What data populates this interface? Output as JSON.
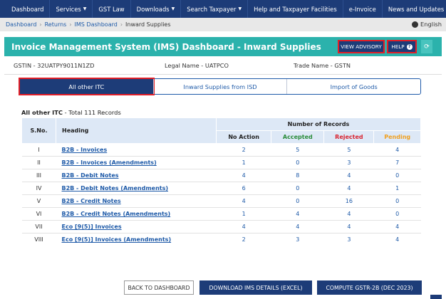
{
  "nav": {
    "items": [
      {
        "label": "Dashboard",
        "caret": false
      },
      {
        "label": "Services",
        "caret": true
      },
      {
        "label": "GST Law",
        "caret": false
      },
      {
        "label": "Downloads",
        "caret": true
      },
      {
        "label": "Search Taxpayer",
        "caret": true
      },
      {
        "label": "Help and Taxpayer Facilities",
        "caret": false
      },
      {
        "label": "e-Invoice",
        "caret": false
      },
      {
        "label": "News and Updates",
        "caret": false
      }
    ]
  },
  "breadcrumb": {
    "items": [
      "Dashboard",
      "Returns",
      "IMS Dashboard",
      "Inward Supplies"
    ],
    "language": "English"
  },
  "header": {
    "title": "Invoice Management System (IMS) Dashboard - Inward Supplies",
    "advisory_label": "VIEW ADVISORY",
    "help_label": "HELP"
  },
  "info": {
    "gstin": "GSTIN - 32UATPY9011N1ZD",
    "legal_name": "Legal Name - UATPCO",
    "trade_name": "Trade Name - GSTN"
  },
  "tabs": [
    {
      "label": "All other ITC",
      "active": true
    },
    {
      "label": "Inward Supplies from ISD",
      "active": false
    },
    {
      "label": "Import of Goods",
      "active": false
    }
  ],
  "records": {
    "section": "All other ITC",
    "total_text": " - Total 111 Records"
  },
  "table": {
    "col_sno": "S.No.",
    "col_heading": "Heading",
    "col_group": "Number of Records",
    "col_no_action": "No Action",
    "col_accepted": "Accepted",
    "col_rejected": "Rejected",
    "col_pending": "Pending",
    "rows": [
      {
        "sno": "I",
        "heading": "B2B - Invoices",
        "no_action": "2",
        "accepted": "5",
        "rejected": "5",
        "pending": "4"
      },
      {
        "sno": "II",
        "heading": "B2B - Invoices (Amendments)",
        "no_action": "1",
        "accepted": "0",
        "rejected": "3",
        "pending": "7"
      },
      {
        "sno": "III",
        "heading": "B2B - Debit Notes",
        "no_action": "4",
        "accepted": "8",
        "rejected": "4",
        "pending": "0"
      },
      {
        "sno": "IV",
        "heading": "B2B - Debit Notes (Amendments)",
        "no_action": "6",
        "accepted": "0",
        "rejected": "4",
        "pending": "1"
      },
      {
        "sno": "V",
        "heading": "B2B - Credit Notes",
        "no_action": "4",
        "accepted": "0",
        "rejected": "16",
        "pending": "0"
      },
      {
        "sno": "VI",
        "heading": "B2B - Credit Notes (Amendments)",
        "no_action": "1",
        "accepted": "4",
        "rejected": "4",
        "pending": "0"
      },
      {
        "sno": "VII",
        "heading": "Eco [9(5)] Invoices",
        "no_action": "4",
        "accepted": "4",
        "rejected": "4",
        "pending": "4"
      },
      {
        "sno": "VIII",
        "heading": "Eco [9(5)] Invoices (Amendments)",
        "no_action": "2",
        "accepted": "3",
        "rejected": "3",
        "pending": "4"
      }
    ]
  },
  "footer": {
    "back_label": "BACK TO DASHBOARD",
    "download_label": "DOWNLOAD IMS DETAILS (EXCEL)",
    "compute_label": "COMPUTE GSTR-2B (DEC 2023)"
  },
  "colors": {
    "nav_bg": "#1d3c78",
    "title_bg": "#2bb2ac",
    "accepted": "#2a8c3a",
    "rejected": "#d92531",
    "pending": "#f0a020",
    "highlight": "#e41e26"
  }
}
